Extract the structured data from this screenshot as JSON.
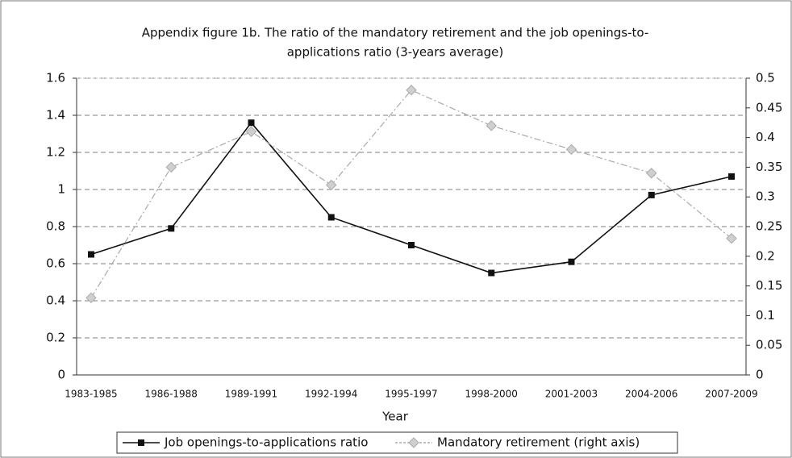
{
  "chart_data": {
    "type": "line",
    "title": "Appendix figure 1b. The ratio of the mandatory retirement and the job openings-to-applications ratio (3-years average)",
    "title_lines": [
      "Appendix figure 1b. The ratio of the mandatory retirement and the job openings-to-",
      "applications ratio (3-years average)"
    ],
    "x_label": "Year",
    "categories": [
      "1983-1985",
      "1986-1988",
      "1989-1991",
      "1992-1994",
      "1995-1997",
      "1998-2000",
      "2001-2003",
      "2004-2006",
      "2007-2009"
    ],
    "series": [
      {
        "name": "Job openings-to-applications ratio",
        "color": "#111111",
        "values": [
          0.65,
          0.79,
          1.36,
          0.85,
          0.7,
          0.55,
          0.61,
          0.97,
          1.07
        ]
      },
      {
        "name": "Mandatory retirement (right axis)",
        "color": "#aaaaaa",
        "axis": "y2",
        "values": [
          0.13,
          0.35,
          0.41,
          0.32,
          0.48,
          0.42,
          0.38,
          0.34,
          0.23
        ]
      }
    ],
    "ylim": [
      0,
      1.6
    ],
    "yticks": [
      0,
      0.2,
      0.4,
      0.6,
      0.8,
      1,
      1.2,
      1.4,
      1.6
    ],
    "y2lim": [
      0,
      0.5
    ],
    "y2ticks": [
      0,
      0.05,
      0.1,
      0.15,
      0.2,
      0.25,
      0.3,
      0.35,
      0.4,
      0.45,
      0.5
    ],
    "grid": true,
    "legend": "bottom"
  }
}
